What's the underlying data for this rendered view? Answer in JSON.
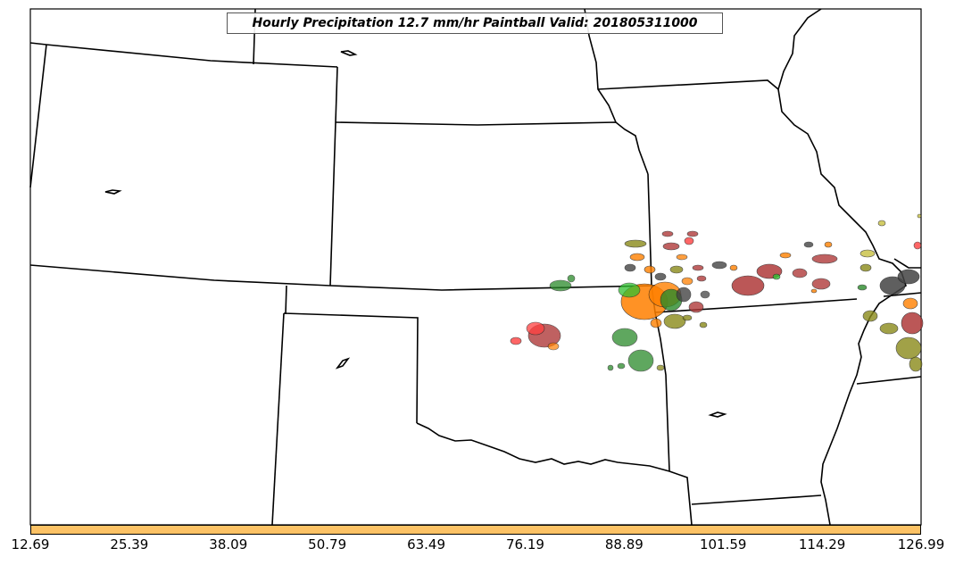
{
  "title": "Hourly Precipitation 12.7 mm/hr Paintball Valid: 201805311000",
  "colorbar": {
    "color": "#fcc265",
    "ticks": [
      "12.69",
      "25.39",
      "38.09",
      "50.79",
      "63.49",
      "76.19",
      "88.89",
      "101.59",
      "114.29",
      "126.99"
    ]
  },
  "paintball_colors": [
    "#b03a3a",
    "#ff4040",
    "#ff8000",
    "#30c030",
    "#2a8a2a",
    "#8a8a1a",
    "#444444",
    "#c8c040"
  ]
}
